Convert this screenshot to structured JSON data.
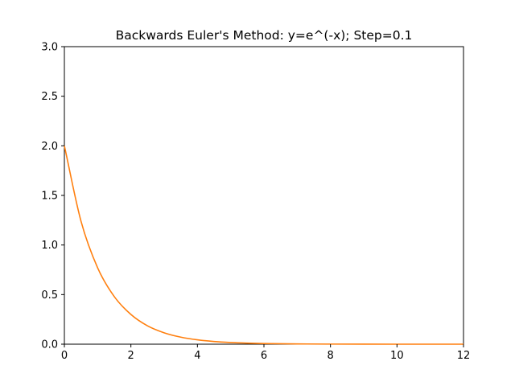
{
  "chart_data": {
    "type": "line",
    "title": "Backwards Euler's Method: y=e^(-x); Step=0.1",
    "xlabel": "",
    "ylabel": "",
    "xlim": [
      0,
      12
    ],
    "ylim": [
      0.0,
      3.0
    ],
    "x_ticks": [
      0,
      2,
      4,
      6,
      8,
      10,
      12
    ],
    "x_tick_labels": [
      "0",
      "2",
      "4",
      "6",
      "8",
      "10",
      "12"
    ],
    "y_ticks": [
      0.0,
      0.5,
      1.0,
      1.5,
      2.0,
      2.5,
      3.0
    ],
    "y_tick_labels": [
      "0.0",
      "0.5",
      "1.0",
      "1.5",
      "2.0",
      "2.5",
      "3.0"
    ],
    "grid": false,
    "series": [
      {
        "color": "#ff7f0e",
        "x": [
          0,
          0.5,
          1,
          1.5,
          2,
          2.5,
          3,
          3.5,
          4,
          4.5,
          5,
          5.5,
          6,
          7,
          8,
          9,
          10,
          11,
          12
        ],
        "y": [
          2.0,
          1.24,
          0.77,
          0.48,
          0.3,
          0.185,
          0.115,
          0.071,
          0.044,
          0.027,
          0.017,
          0.011,
          0.007,
          0.0026,
          0.001,
          0.0004,
          0.0001,
          0.0,
          0.0
        ]
      }
    ]
  }
}
